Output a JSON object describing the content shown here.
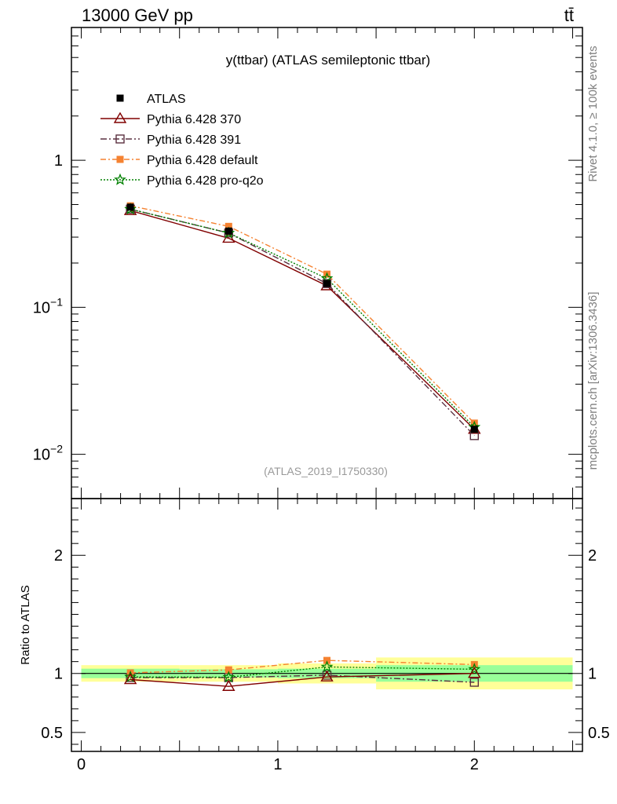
{
  "header": {
    "left": "13000 GeV pp",
    "right": "tt̄"
  },
  "side_labels": {
    "rivet": "Rivet 4.1.0, ≥ 100k events",
    "source": "mcplots.cern.ch [arXiv:1306.3436]"
  },
  "watermark": "(ATLAS_2019_I1750330)",
  "colors": {
    "atlas": "#000000",
    "p370": "#800000",
    "p391": "#5a3040",
    "pdefault": "#f58231",
    "pq2o": "#008000",
    "band_inner": "#99ff99",
    "band_outer": "#ffff99"
  },
  "chart_data": [
    {
      "type": "line",
      "panel": "main",
      "title": "y(ttbar) (ATLAS semileptonic ttbar)",
      "xlabel": "",
      "ylabel": "",
      "yscale": "log",
      "xlim": [
        -0.05,
        2.55
      ],
      "ylim": [
        0.005,
        8.0
      ],
      "yticks": [
        {
          "value": 1,
          "base": "1",
          "exp": ""
        },
        {
          "value": 0.1,
          "base": "10",
          "exp": "−1"
        },
        {
          "value": 0.01,
          "base": "10",
          "exp": "−2"
        }
      ],
      "legend_position": "top-left",
      "x": [
        0.25,
        0.75,
        1.25,
        2.0
      ],
      "series": [
        {
          "name": "ATLAS",
          "key": "atlas",
          "values": [
            0.48,
            0.33,
            0.145,
            0.0148
          ]
        },
        {
          "name": "Pythia 6.428 370",
          "key": "p370",
          "values": [
            0.455,
            0.295,
            0.14,
            0.0148
          ]
        },
        {
          "name": "Pythia 6.428 391",
          "key": "p391",
          "values": [
            0.465,
            0.32,
            0.145,
            0.0134
          ]
        },
        {
          "name": "Pythia 6.428 default",
          "key": "pdefault",
          "values": [
            0.49,
            0.355,
            0.168,
            0.0163
          ]
        },
        {
          "name": "Pythia 6.428 pro-q2o",
          "key": "pq2o",
          "values": [
            0.465,
            0.32,
            0.157,
            0.0153
          ]
        }
      ]
    },
    {
      "type": "line",
      "panel": "ratio",
      "xlabel": "",
      "ylabel": "Ratio to ATLAS",
      "xlim": [
        -0.05,
        2.55
      ],
      "ylim": [
        0.34,
        2.48
      ],
      "xticks": [
        0,
        1,
        2
      ],
      "yticks": [
        0.5,
        1,
        2
      ],
      "bands": [
        {
          "x_from": 0.0,
          "x_to": 0.5,
          "inner": [
            0.96,
            1.04
          ],
          "outer": [
            0.93,
            1.07
          ]
        },
        {
          "x_from": 0.5,
          "x_to": 1.0,
          "inner": [
            0.965,
            1.035
          ],
          "outer": [
            0.93,
            1.07
          ]
        },
        {
          "x_from": 1.0,
          "x_to": 1.5,
          "inner": [
            0.96,
            1.04
          ],
          "outer": [
            0.915,
            1.085
          ]
        },
        {
          "x_from": 1.5,
          "x_to": 2.5,
          "inner": [
            0.93,
            1.07
          ],
          "outer": [
            0.865,
            1.135
          ]
        }
      ],
      "x": [
        0.25,
        0.75,
        1.25,
        2.0
      ],
      "series": [
        {
          "name": "Pythia 6.428 370",
          "key": "p370",
          "values": [
            0.948,
            0.89,
            0.97,
            1.0
          ]
        },
        {
          "name": "Pythia 6.428 391",
          "key": "p391",
          "values": [
            0.965,
            0.965,
            0.985,
            0.925
          ]
        },
        {
          "name": "Pythia 6.428 default",
          "key": "pdefault",
          "values": [
            1.005,
            1.03,
            1.11,
            1.075
          ]
        },
        {
          "name": "Pythia 6.428 pro-q2o",
          "key": "pq2o",
          "values": [
            0.97,
            0.968,
            1.055,
            1.035
          ]
        }
      ]
    }
  ]
}
